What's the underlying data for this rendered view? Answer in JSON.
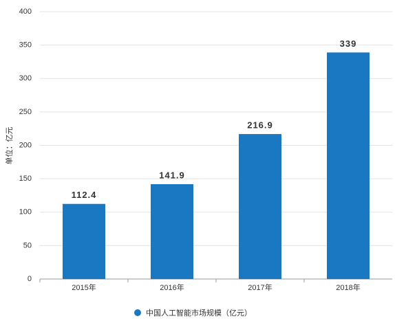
{
  "chart_data": {
    "type": "bar",
    "y_label": "单位：亿元",
    "categories": [
      "2015年",
      "2016年",
      "2017年",
      "2018年"
    ],
    "series": [
      {
        "name": "中国人工智能市场规模（亿元）",
        "color": "#1a78c2",
        "values": [
          112.4,
          141.9,
          216.9,
          339
        ]
      }
    ],
    "ylim": [
      0,
      400
    ],
    "yticks": [
      0,
      50,
      100,
      150,
      200,
      250,
      300,
      350,
      400
    ],
    "grid": true,
    "legend": "bottom"
  }
}
